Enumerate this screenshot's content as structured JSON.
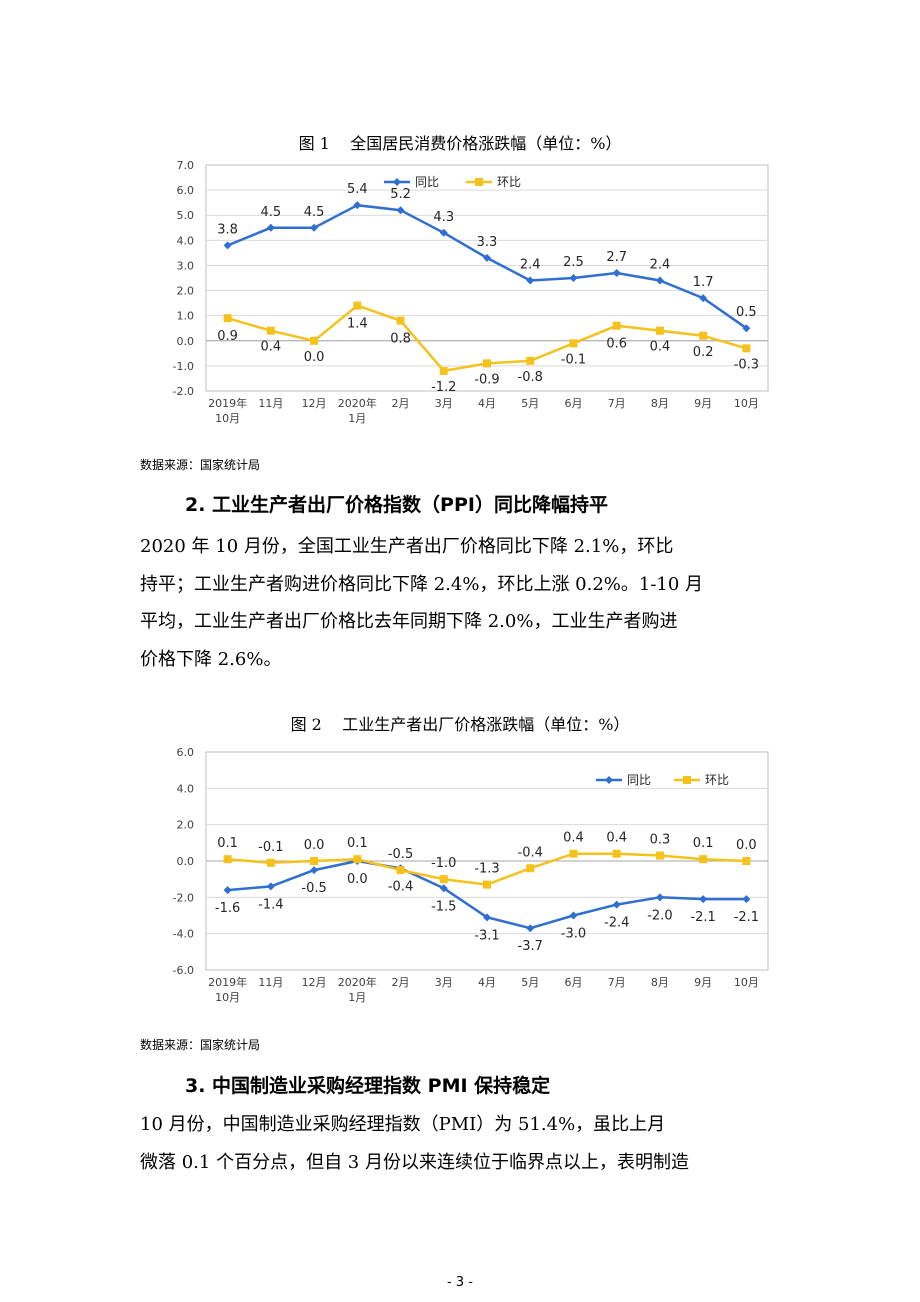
{
  "figure1": {
    "caption": "图 1    全国居民消费价格涨跌幅（单位：%）",
    "source": "数据来源：国家统计局"
  },
  "section2": {
    "heading": "2. 工业生产者出厂价格指数（PPI）同比降幅持平",
    "lines": [
      "2020 年 10 月份，全国工业生产者出厂价格同比下降 2.1%，环比",
      "持平；工业生产者购进价格同比下降 2.4%，环比上涨 0.2%。1-10 月",
      "平均，工业生产者出厂价格比去年同期下降 2.0%，工业生产者购进",
      "价格下降 2.6%。"
    ]
  },
  "figure2": {
    "caption": "图 2    工业生产者出厂价格涨跌幅（单位：%）",
    "source": "数据来源：国家统计局"
  },
  "section3": {
    "heading": "3. 中国制造业采购经理指数 PMI 保持稳定",
    "lines": [
      "10 月份，中国制造业采购经理指数（PMI）为 51.4%，虽比上月",
      "微落 0.1 个百分点，但自 3 月份以来连续位于临界点以上，表明制造"
    ]
  },
  "page_number": "- 3 -",
  "chart_data": [
    {
      "type": "line",
      "title": "图 1    全国居民消费价格涨跌幅（单位：%）",
      "categories": [
        "2019年\n10月",
        "11月",
        "12月",
        "2020年\n1月",
        "2月",
        "3月",
        "4月",
        "5月",
        "6月",
        "7月",
        "8月",
        "9月",
        "10月"
      ],
      "series": [
        {
          "name": "同比",
          "color": "#2e6fd1",
          "marker": "diamond",
          "values": [
            3.8,
            4.5,
            4.5,
            5.4,
            5.2,
            4.3,
            3.3,
            2.4,
            2.5,
            2.7,
            2.4,
            1.7,
            0.5
          ]
        },
        {
          "name": "环比",
          "color": "#f5c21b",
          "marker": "square",
          "values": [
            0.9,
            0.4,
            0.0,
            1.4,
            0.8,
            -1.2,
            -0.9,
            -0.8,
            -0.1,
            0.6,
            0.4,
            0.2,
            -0.3
          ]
        }
      ],
      "ylim": [
        -2.0,
        7.0
      ],
      "ytick_step": 1.0,
      "grid": true,
      "legend": "top",
      "xlabel": "",
      "ylabel": ""
    },
    {
      "type": "line",
      "title": "图 2    工业生产者出厂价格涨跌幅（单位：%）",
      "categories": [
        "2019年\n10月",
        "11月",
        "12月",
        "2020年\n1月",
        "2月",
        "3月",
        "4月",
        "5月",
        "6月",
        "7月",
        "8月",
        "9月",
        "10月"
      ],
      "series": [
        {
          "name": "同比",
          "color": "#2e6fd1",
          "marker": "diamond",
          "values": [
            -1.6,
            -1.4,
            -0.5,
            0.0,
            -0.4,
            -1.5,
            -3.1,
            -3.7,
            -3.0,
            -2.4,
            -2.0,
            -2.1,
            -2.1
          ]
        },
        {
          "name": "环比",
          "color": "#f5c21b",
          "marker": "square",
          "values": [
            0.1,
            -0.1,
            0.0,
            0.1,
            -0.5,
            -1.0,
            -1.3,
            -0.4,
            0.4,
            0.4,
            0.3,
            0.1,
            0.0
          ]
        }
      ],
      "ylim": [
        -6.0,
        6.0
      ],
      "ytick_step": 2.0,
      "grid": true,
      "legend": "top-right",
      "xlabel": "",
      "ylabel": ""
    }
  ]
}
